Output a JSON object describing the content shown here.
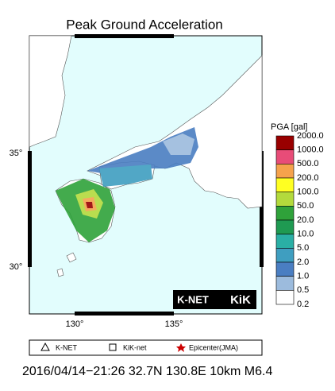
{
  "title": "Peak Ground Acceleration",
  "lat_labels": [
    "35°",
    "30°"
  ],
  "lon_labels": [
    "130°",
    "135°"
  ],
  "scale": {
    "title": "PGA [gal]",
    "labels": [
      "2000.0",
      "1000.0",
      "500.0",
      "200.0",
      "100.0",
      "50.0",
      "20.0",
      "10.0",
      "5.0",
      "2.0",
      "1.0",
      "0.5",
      "0.2"
    ],
    "colors": [
      "#990000",
      "#e84c78",
      "#f5a24c",
      "#ffff22",
      "#b3da3c",
      "#2fa23a",
      "#1f9a52",
      "#2aafa5",
      "#3f9ec0",
      "#4a7ec2",
      "#9cbbdd",
      "#ffffff"
    ]
  },
  "logo": {
    "knet": "K-NET",
    "kik": "KiK"
  },
  "legend": [
    "K-NET",
    "KiK-net",
    "Epicenter(JMA)"
  ],
  "caption": "2016/04/14−21:26 32.7N 130.8E 10km M6.4"
}
